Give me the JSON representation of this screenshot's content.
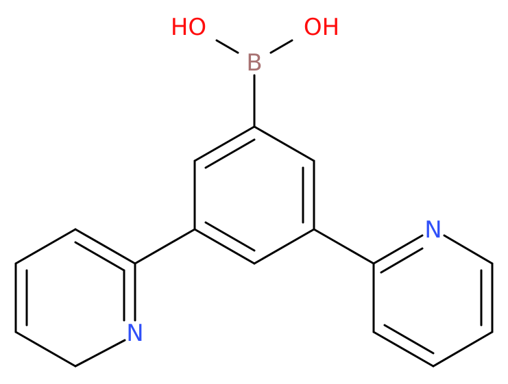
{
  "atoms": {
    "hydroxyl_left": "HO",
    "hydroxyl_right": "OH",
    "boron": "B",
    "nitrogen_left": "N",
    "nitrogen_right": "N"
  }
}
